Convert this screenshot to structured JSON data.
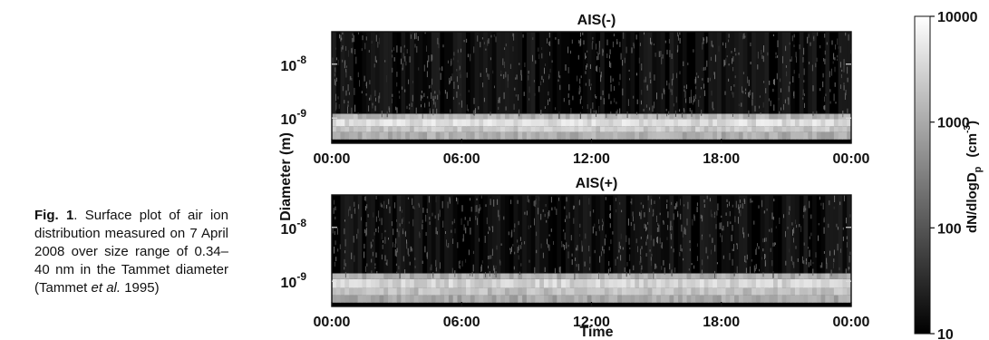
{
  "caption": {
    "label": "Fig. 1",
    "text_before_italic": ". Surface plot of air ion distribution measured on 7 April 2008 over size range of 0.34–40 nm in the Tammet diameter (Tammet ",
    "italic": "et al.",
    "text_after_italic": " 1995)"
  },
  "chart_data": [
    {
      "type": "heatmap",
      "title": "AIS(-)",
      "xlabel": "",
      "ylabel": "Diameter  (m)",
      "x_ticks": [
        "00:00",
        "06:00",
        "12:00",
        "18:00",
        "00:00"
      ],
      "y_ticks": [
        {
          "value": 1e-08,
          "base": "10",
          "exp": "-8"
        },
        {
          "value": 1e-09,
          "base": "10",
          "exp": "-9"
        }
      ],
      "y_scale": "log",
      "ylim": [
        3.4e-10,
        4e-08
      ],
      "xlim_hours": [
        0,
        24
      ],
      "bands": [
        {
          "diameter_range": [
            4e-10,
            5.5e-10
          ],
          "dNdlogDp": 1200
        },
        {
          "diameter_range": [
            5.5e-10,
            7e-10
          ],
          "dNdlogDp": 2500
        },
        {
          "diameter_range": [
            7e-10,
            9.5e-10
          ],
          "dNdlogDp": 4500
        },
        {
          "diameter_range": [
            9.5e-10,
            1.2e-09
          ],
          "dNdlogDp": 1500
        },
        {
          "diameter_range": [
            1.2e-09,
            4e-08
          ],
          "dNdlogDp": 15
        }
      ]
    },
    {
      "type": "heatmap",
      "title": "AIS(+)",
      "xlabel": "Time",
      "ylabel": "Diameter  (m)",
      "x_ticks": [
        "00:00",
        "06:00",
        "12:00",
        "18:00",
        "00:00"
      ],
      "y_ticks": [
        {
          "value": 1e-08,
          "base": "10",
          "exp": "-8"
        },
        {
          "value": 1e-09,
          "base": "10",
          "exp": "-9"
        }
      ],
      "y_scale": "log",
      "ylim": [
        3.4e-10,
        4e-08
      ],
      "xlim_hours": [
        0,
        24
      ],
      "bands": [
        {
          "diameter_range": [
            4e-10,
            5.5e-10
          ],
          "dNdlogDp": 1000
        },
        {
          "diameter_range": [
            5.5e-10,
            7.5e-10
          ],
          "dNdlogDp": 2000
        },
        {
          "diameter_range": [
            7.5e-10,
            1.1e-09
          ],
          "dNdlogDp": 3500
        },
        {
          "diameter_range": [
            1.1e-09,
            1.4e-09
          ],
          "dNdlogDp": 1200
        },
        {
          "diameter_range": [
            1.4e-09,
            4e-08
          ],
          "dNdlogDp": 15
        }
      ]
    }
  ],
  "colorbar": {
    "label_main": "dN/dlogD",
    "label_sub": "p",
    "label_unit": "(cm",
    "label_unit_exp": "-3",
    "label_unit_close": ")",
    "scale": "log",
    "range": [
      10,
      10000
    ],
    "ticks": [
      "10000",
      "1000",
      "100",
      "10"
    ],
    "colormap": [
      "#000000",
      "#ffffff"
    ]
  }
}
